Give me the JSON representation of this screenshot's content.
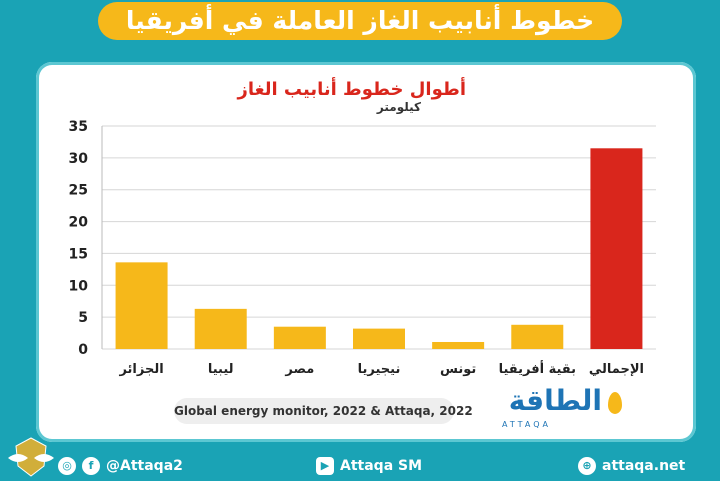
{
  "banner": {
    "title": "خطوط أنابيب الغاز العاملة في أفريقيا"
  },
  "colors": {
    "bar": "#f6b81a",
    "bar_total": "#d9261c",
    "background": "#1aa3b5"
  },
  "chart_data": {
    "type": "bar",
    "title": "أطوال خطوط أنابيب الغاز",
    "ylabel": "كيلومتر",
    "xlabel": "",
    "categories": [
      "الجزائر",
      "ليبيا",
      "مصر",
      "نيجيريا",
      "تونس",
      "بقية أفريقيا",
      "الإجمالي"
    ],
    "values": [
      13.6,
      6.3,
      3.5,
      3.2,
      1.1,
      3.8,
      31.5
    ],
    "ylim": [
      0,
      35
    ],
    "yticks": [
      0,
      5,
      10,
      15,
      20,
      25,
      30,
      35
    ],
    "highlight_index": 6,
    "grid": true
  },
  "source": "Global energy monitor, 2022 & Attaqa, 2022",
  "logo": {
    "arabic": "الطاقة",
    "latin": "ATTAQA"
  },
  "footer": {
    "social_handle": "@Attaqa2",
    "youtube": "Attaqa SM",
    "website": "attaqa.net",
    "icons": [
      "instagram-icon",
      "facebook-icon",
      "youtube-icon",
      "globe-icon"
    ]
  }
}
